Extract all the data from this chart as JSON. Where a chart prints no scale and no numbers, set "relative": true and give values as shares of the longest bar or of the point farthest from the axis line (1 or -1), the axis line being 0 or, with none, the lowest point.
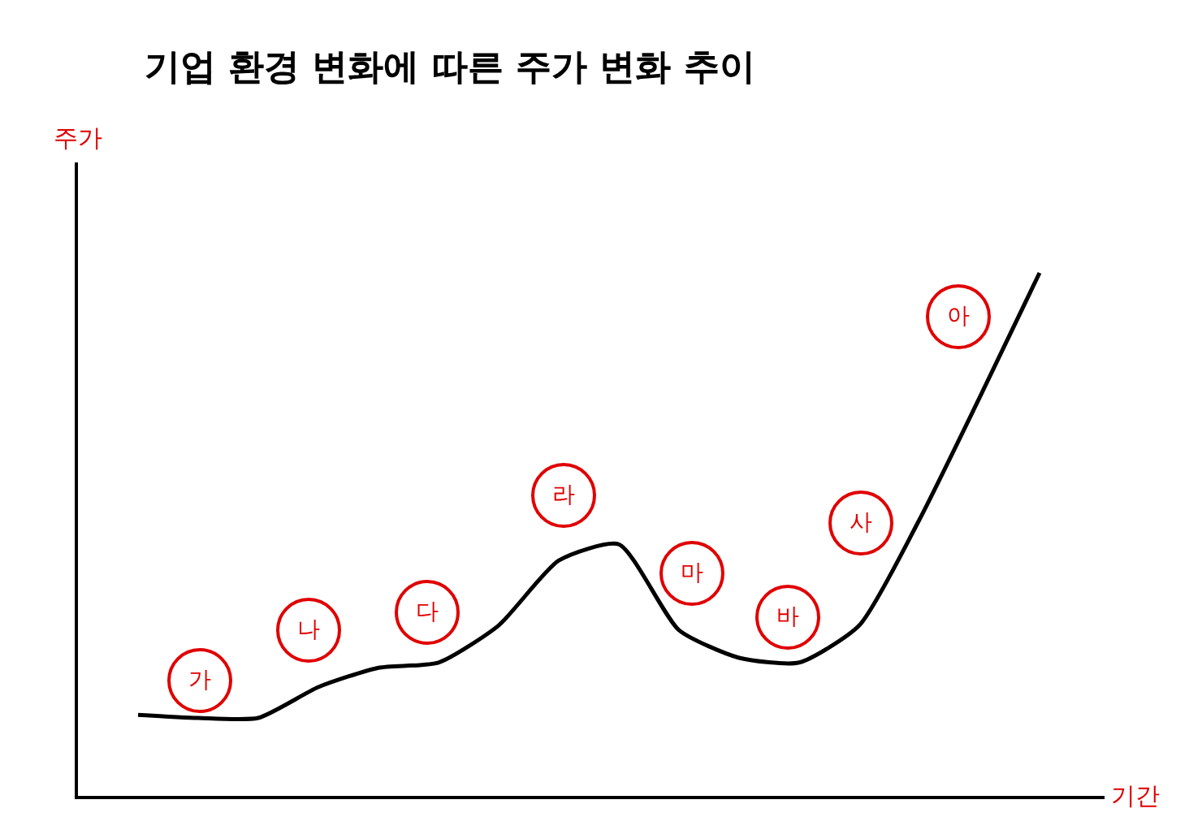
{
  "chart_data": {
    "type": "line",
    "relative": true,
    "title": "기업 환경 변화에 따른 주가 변화 추이",
    "xlabel": "기간",
    "ylabel": "주가",
    "categories": [
      null,
      null,
      null,
      null,
      null,
      null,
      null,
      null,
      null,
      null,
      null,
      null,
      null,
      null,
      null,
      null
    ],
    "series": [
      {
        "color": "#000000",
        "values": [
          0.155,
          0.149,
          0.149,
          0.208,
          0.245,
          0.255,
          0.326,
          0.45,
          0.481,
          0.317,
          0.264,
          0.255,
          0.326,
          0.528,
          0.761,
          1.0
        ]
      }
    ],
    "annotations": [
      "가",
      "나",
      "다",
      "라",
      "마",
      "바",
      "사",
      "아"
    ],
    "marker": "none",
    "line_style": "solid"
  }
}
